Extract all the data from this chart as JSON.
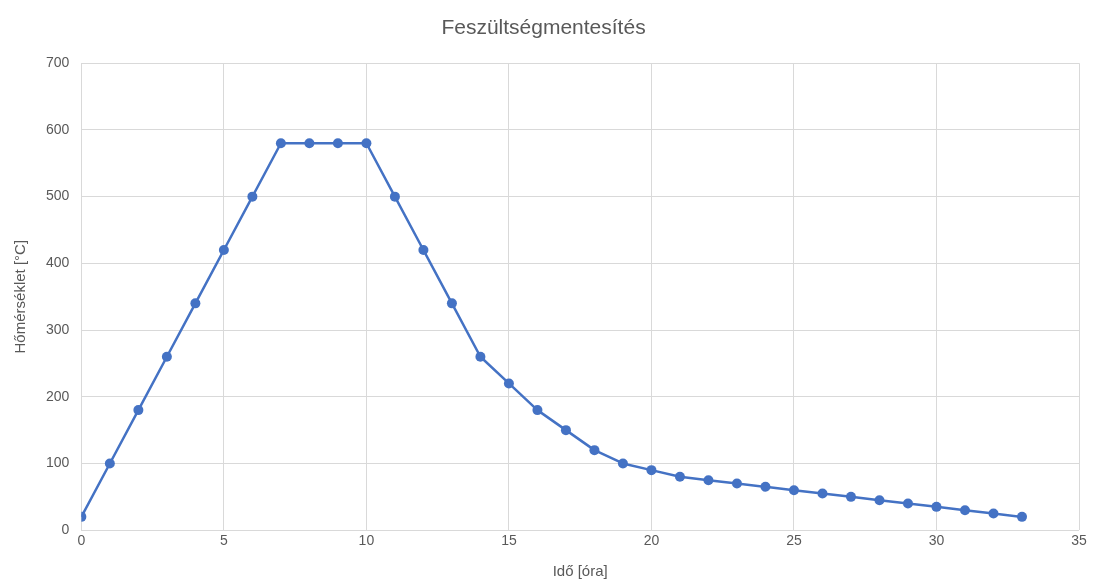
{
  "chart_data": {
    "type": "line",
    "title": "Feszültségmentesítés",
    "xlabel": "Idő [óra]",
    "ylabel": "Hőmérséklet [°C]",
    "x": [
      0,
      1,
      2,
      3,
      4,
      5,
      6,
      7,
      8,
      9,
      10,
      11,
      12,
      13,
      14,
      15,
      16,
      17,
      18,
      19,
      20,
      21,
      22,
      23,
      24,
      25,
      26,
      27,
      28,
      29,
      30,
      31,
      32,
      33
    ],
    "series": [
      {
        "color": "#4472c4",
        "values": [
          20,
          100,
          180,
          260,
          340,
          420,
          500,
          580,
          580,
          580,
          580,
          500,
          420,
          340,
          260,
          220,
          180,
          150,
          120,
          100,
          90,
          80,
          75,
          70,
          65,
          60,
          55,
          50,
          45,
          40,
          35,
          30,
          25,
          20
        ]
      }
    ],
    "xlim": [
      0,
      35
    ],
    "xticks": [
      0,
      5,
      10,
      15,
      20,
      25,
      30,
      35
    ],
    "ylim": [
      0,
      700
    ],
    "yticks": [
      0,
      100,
      200,
      300,
      400,
      500,
      600,
      700
    ],
    "grid": true,
    "legend": false,
    "marker": "circle",
    "line_style": "solid"
  }
}
